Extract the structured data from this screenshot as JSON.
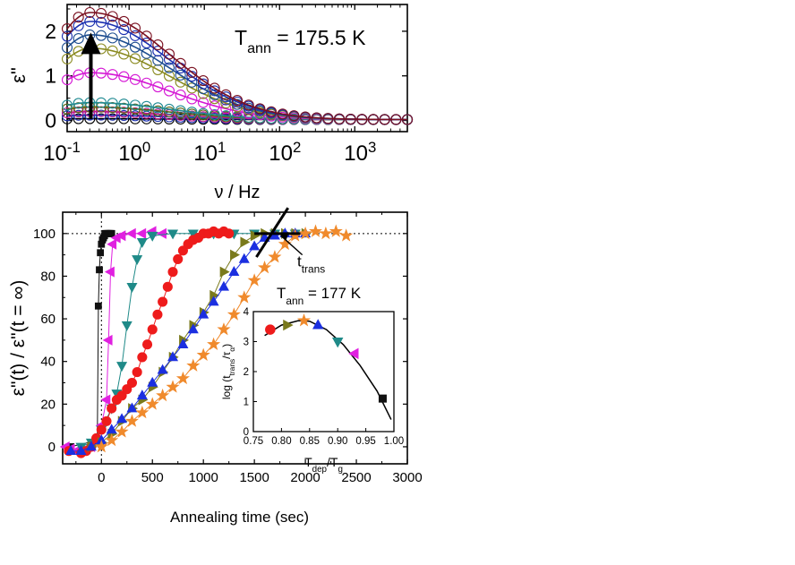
{
  "chart_data": [
    {
      "type": "line",
      "panel": "top",
      "xscale": "log",
      "xlim": [
        0.15,
        5000
      ],
      "ylim": [
        -0.25,
        2.6
      ],
      "xlabel": "ν / Hz",
      "ylabel": "ε\"",
      "xticks": [
        {
          "value": 0.1,
          "base": "10",
          "exp": "-1"
        },
        {
          "value": 1,
          "base": "10",
          "exp": "0"
        },
        {
          "value": 10,
          "base": "10",
          "exp": "1"
        },
        {
          "value": 100,
          "base": "10",
          "exp": "2"
        },
        {
          "value": 1000,
          "base": "10",
          "exp": "3"
        }
      ],
      "yticks": [
        0,
        1,
        2
      ],
      "annotation": {
        "prefix": "T",
        "subscript": "ann",
        "suffix": " = 175.5 K"
      },
      "arrow": {
        "x": 0.31,
        "y_from": 0.03,
        "y_to": 1.85
      },
      "peak_frequency_hz": 0.31,
      "series": [
        {
          "color": "#000000",
          "peak": 0.02
        },
        {
          "color": "#1a2fb0",
          "peak": 0.1
        },
        {
          "color": "#c0178d",
          "peak": 0.18
        },
        {
          "color": "#5e6412",
          "peak": 0.28
        },
        {
          "color": "#208a92",
          "peak": 0.38
        },
        {
          "color": "#d416d4",
          "peak": 1.05
        },
        {
          "color": "#8a8a20",
          "peak": 1.6
        },
        {
          "color": "#1d4d8f",
          "peak": 1.9
        },
        {
          "color": "#1a2fb0",
          "peak": 2.2
        },
        {
          "color": "#7a1020",
          "peak": 2.4
        }
      ]
    },
    {
      "type": "scatter",
      "panel": "bottom",
      "xlim": [
        -380,
        3000
      ],
      "ylim": [
        -8,
        110
      ],
      "xlabel": "Annealing time (sec)",
      "ylabel": "ε\"(t) / ε\"(t = ∞)",
      "xticks": [
        0,
        500,
        1000,
        1500,
        2000,
        2500,
        3000
      ],
      "yticks": [
        0,
        20,
        40,
        60,
        80,
        100
      ],
      "annotation": {
        "prefix": "T",
        "subscript": "ann",
        "suffix": " = 177 K"
      },
      "ttrans_label": {
        "prefix": "t",
        "subscript": "trans"
      },
      "series": [
        {
          "marker": "square",
          "color": "#111111",
          "onset": -40,
          "trans": 30,
          "x": [
            -300,
            -40,
            -30,
            -20,
            -10,
            0,
            10,
            20,
            30,
            40,
            50,
            60,
            70,
            80,
            90,
            100
          ],
          "y": [
            0,
            3,
            66,
            83,
            91,
            95,
            97,
            98,
            99,
            100,
            100,
            100,
            100,
            100,
            100,
            100
          ]
        },
        {
          "marker": "triangle-left",
          "color": "#e020e0",
          "onset": 40,
          "trans": 90,
          "x": [
            -350,
            -300,
            -250,
            -200,
            -150,
            -100,
            -50,
            0,
            50,
            70,
            90,
            110,
            150,
            200,
            300,
            400,
            500,
            600
          ],
          "y": [
            0,
            -1,
            -2,
            -2,
            -1,
            0,
            3,
            10,
            22,
            50,
            82,
            95,
            98,
            99,
            100,
            100,
            101,
            100
          ]
        },
        {
          "marker": "triangle-down",
          "color": "#1f8a88",
          "onset": 170,
          "trans": 300,
          "x": [
            -200,
            -100,
            0,
            100,
            150,
            200,
            250,
            300,
            350,
            400,
            500,
            700,
            900,
            1100,
            1300,
            1500,
            1700,
            1900
          ],
          "y": [
            0,
            2,
            8,
            18,
            25,
            38,
            57,
            75,
            88,
            96,
            99,
            100,
            100,
            100,
            100,
            100,
            100,
            100
          ]
        },
        {
          "marker": "circle",
          "color": "#ee1b1b",
          "onset": 240,
          "trans": 840,
          "x": [
            -320,
            -200,
            -150,
            -100,
            -50,
            0,
            50,
            100,
            150,
            200,
            250,
            300,
            350,
            400,
            450,
            500,
            550,
            600,
            650,
            700,
            750,
            800,
            850,
            900,
            950,
            1000,
            1050,
            1100,
            1150,
            1200,
            1250
          ],
          "y": [
            -2,
            -3,
            -2,
            0,
            4,
            8,
            12,
            18,
            22,
            24,
            27,
            30,
            35,
            42,
            48,
            55,
            62,
            68,
            75,
            82,
            88,
            92,
            95,
            97,
            98,
            100,
            100,
            101,
            100,
            101,
            100
          ]
        },
        {
          "marker": "triangle-right",
          "color": "#7a7a1c",
          "onset": 280,
          "trans": 1300,
          "x": [
            -100,
            0,
            100,
            200,
            300,
            400,
            500,
            600,
            700,
            800,
            900,
            1000,
            1100,
            1200,
            1300,
            1400,
            1500,
            1600,
            1700,
            1800,
            1900,
            2000
          ],
          "y": [
            0,
            2,
            6,
            12,
            18,
            22,
            28,
            35,
            42,
            50,
            57,
            63,
            71,
            82,
            90,
            96,
            99,
            100,
            100,
            100,
            100,
            100
          ]
        },
        {
          "marker": "triangle-up",
          "color": "#1b2fe0",
          "onset": 200,
          "trans": 1600,
          "x": [
            -300,
            -200,
            -100,
            0,
            100,
            200,
            300,
            400,
            500,
            600,
            700,
            800,
            900,
            1000,
            1100,
            1200,
            1300,
            1400,
            1500,
            1600,
            1700,
            1800,
            1900,
            2000
          ],
          "y": [
            -2,
            -2,
            0,
            3,
            8,
            13,
            18,
            24,
            30,
            36,
            42,
            48,
            55,
            62,
            68,
            75,
            82,
            88,
            94,
            98,
            99,
            100,
            100,
            100
          ]
        },
        {
          "marker": "star",
          "color": "#f08a2c",
          "onset": 300,
          "trans": 1900,
          "x": [
            0,
            100,
            200,
            300,
            400,
            500,
            600,
            700,
            800,
            900,
            1000,
            1100,
            1200,
            1300,
            1400,
            1500,
            1600,
            1700,
            1800,
            1900,
            2000,
            2100,
            2200,
            2300,
            2400
          ],
          "y": [
            0,
            3,
            7,
            12,
            16,
            20,
            24,
            28,
            32,
            38,
            43,
            48,
            55,
            62,
            70,
            78,
            84,
            89,
            95,
            99,
            100,
            101,
            100,
            101,
            99
          ]
        }
      ],
      "inset": {
        "xlim": [
          0.75,
          1.0
        ],
        "ylim": [
          0,
          4
        ],
        "xlabel": {
          "prefix": "T",
          "subscript1": "dep",
          "middle": "/T",
          "subscript2": "g"
        },
        "ylabel": {
          "prefix": "log (t",
          "subscript1": "trans",
          "middle": "/τ",
          "subscript2": "α",
          "suffix": ")"
        },
        "xticks": [
          "0.75",
          "0.80",
          "0.85",
          "0.90",
          "0.95",
          "1.00"
        ],
        "yticks": [
          0,
          1,
          2,
          3,
          4
        ],
        "points": [
          {
            "x": 0.78,
            "y": 3.4,
            "marker": "circle",
            "color": "#ee1b1b"
          },
          {
            "x": 0.81,
            "y": 3.55,
            "marker": "triangle-right",
            "color": "#7a7a1c"
          },
          {
            "x": 0.84,
            "y": 3.7,
            "marker": "star",
            "color": "#f08a2c"
          },
          {
            "x": 0.865,
            "y": 3.55,
            "marker": "triangle-up",
            "color": "#1b2fe0"
          },
          {
            "x": 0.9,
            "y": 3.0,
            "marker": "triangle-down",
            "color": "#1f8a88"
          },
          {
            "x": 0.93,
            "y": 2.6,
            "marker": "triangle-left",
            "color": "#e020e0"
          },
          {
            "x": 0.98,
            "y": 1.1,
            "marker": "square",
            "color": "#111111"
          }
        ],
        "fit": {
          "x": [
            0.77,
            0.8,
            0.83,
            0.85,
            0.88,
            0.91,
            0.94,
            0.97,
            0.995
          ],
          "y": [
            3.2,
            3.55,
            3.7,
            3.68,
            3.4,
            2.9,
            2.2,
            1.35,
            0.4
          ]
        }
      }
    }
  ]
}
